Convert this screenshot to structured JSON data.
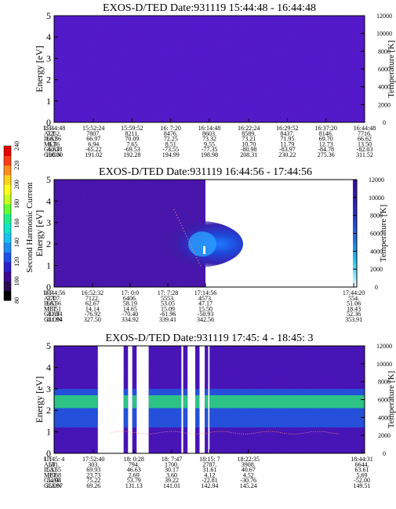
{
  "colorbar": {
    "label": "Second Harmonic Current",
    "ticks": [
      "80",
      "100",
      "120",
      "140",
      "160",
      "180",
      "200",
      "220",
      "240"
    ]
  },
  "chart_data": [
    {
      "type": "heatmap",
      "title": "EXOS-D/TED   Date:931119   15:44:48 - 16:44:48",
      "ylabel": "Energy [eV]",
      "y2label": "Temperature [K]",
      "ylim": [
        0,
        5
      ],
      "y2lim": [
        0,
        12000
      ],
      "yticks": [
        "0",
        "1",
        "2",
        "3",
        "4",
        "5"
      ],
      "y2ticks": [
        "0",
        "2000",
        "4000",
        "6000",
        "8000",
        "10000",
        "12000"
      ],
      "orbit_rows": [
        "UT",
        "ALT",
        "ILAT",
        "MLT",
        "GLAT",
        "GLON"
      ],
      "orbit_table": [
        [
          "15:44:48",
          "7252.",
          "66.36",
          "6.36",
          "-60.38",
          "190.30"
        ],
        [
          "15:52:24",
          "7807.",
          "66.97",
          "6.94",
          "-65.22",
          "191.02"
        ],
        [
          "15:59:52",
          "8211.",
          "70.09",
          "7.65",
          "-69.53",
          "192.28"
        ],
        [
          "16: 7:20",
          "8476.",
          "72.25",
          "8.51",
          "-73.55",
          "194.99"
        ],
        [
          "16:14:48",
          "8603.",
          "73.32",
          "9.55",
          "-77.35",
          "198.98"
        ],
        [
          "16:22:24",
          "8589.",
          "73.21",
          "10.70",
          "-80.98",
          "208.31"
        ],
        [
          "16:29:52",
          "8437.",
          "71.95",
          "11.79",
          "-83.97",
          "230.22"
        ],
        [
          "16:37:20",
          "8146.",
          "69.70",
          "12.73",
          "-84.78",
          "275.36"
        ],
        [
          "16:44:48",
          "7716.",
          "66.62",
          "13.50",
          "-82.03",
          "311.52"
        ]
      ]
    },
    {
      "type": "heatmap",
      "title": "EXOS-D/TED   Date:931119   16:44:56 - 17:44:56",
      "ylabel": "Energy [eV]",
      "y2label": "Temperature [K]",
      "ylim": [
        0,
        5
      ],
      "y2lim": [
        0,
        12000
      ],
      "yticks": [
        "0",
        "1",
        "2",
        "3",
        "4",
        "5"
      ],
      "y2ticks": [
        "0",
        "2000",
        "4000",
        "6000",
        "8000",
        "10000",
        "12000"
      ],
      "orbit_rows": [
        "UT",
        "ALT",
        "ILAT",
        "MLT",
        "GLAT",
        "GLON"
      ],
      "orbit_table": [
        [
          "16:44:56",
          "7707.",
          "66.56",
          "13.51",
          "-81.94",
          "311.94"
        ],
        [
          "16:52:32",
          "7122.",
          "62.67",
          "14.14",
          "-76.92",
          "327.50"
        ],
        [
          "17: 0:0",
          "6406.",
          "58.19",
          "14.65",
          "-70.40",
          "334.92"
        ],
        [
          "17: 7:28",
          "5553.",
          "53.05",
          "15.09",
          "-61.96",
          "339.41"
        ],
        [
          "17:14:56",
          "4573.",
          "47.17",
          "15.50",
          "-50.93",
          "342.56"
        ],
        [
          "17:44:20",
          "554.",
          "51.06",
          "18.43",
          "52.36",
          "353.91"
        ]
      ]
    },
    {
      "type": "heatmap",
      "title": "EXOS-D/TED   Date:931119   17:45: 4 - 18:45: 3",
      "ylabel": "Energy [eV]",
      "y2label": "Temperature [K]",
      "ylim": [
        0,
        5
      ],
      "y2lim": [
        0,
        12000
      ],
      "yticks": [
        "0",
        "1",
        "2",
        "3",
        "4",
        "5"
      ],
      "y2ticks": [
        "0",
        "2000",
        "4000",
        "6000",
        "8000",
        "10000",
        "12000"
      ],
      "orbit_rows": [
        "UT",
        "ALT",
        "ILAT",
        "MLT",
        "GLAT",
        "GLON"
      ],
      "orbit_table": [
        [
          "17:45: 4",
          "501.",
          "53.55",
          "18.68",
          "54.94",
          "353.97"
        ],
        [
          "17:52:40",
          "303.",
          "69.93",
          "23.73",
          "75.22",
          "69.26"
        ],
        [
          "18: 0:28",
          "794.",
          "46.63",
          "2.69",
          "53.79",
          "131.13"
        ],
        [
          "18: 7:47",
          "1700.",
          "30.17",
          "3.60",
          "39.22",
          "141.01"
        ],
        [
          "18:15: 7",
          "2787.",
          "31.61",
          "4.12",
          "-22.81",
          "142.94"
        ],
        [
          "18:22:35",
          "3908.",
          "40.67",
          "4.52",
          "-30.76",
          "145.24"
        ],
        [
          "18:44:31",
          "6644.",
          "63.61",
          "5.69",
          "-52.00",
          "149.51"
        ]
      ]
    }
  ]
}
